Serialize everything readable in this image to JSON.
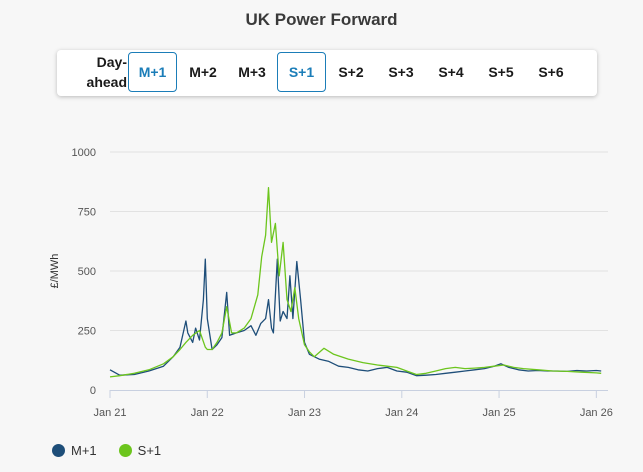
{
  "title": "UK Power Forward",
  "tabs": [
    {
      "label": "Day-ahead",
      "active": false
    },
    {
      "label": "M+1",
      "active": true
    },
    {
      "label": "M+2",
      "active": false
    },
    {
      "label": "M+3",
      "active": false
    },
    {
      "label": "S+1",
      "active": true
    },
    {
      "label": "S+2",
      "active": false
    },
    {
      "label": "S+3",
      "active": false
    },
    {
      "label": "S+4",
      "active": false
    },
    {
      "label": "S+5",
      "active": false
    },
    {
      "label": "S+6",
      "active": false
    }
  ],
  "chart_data": {
    "type": "line",
    "title": "",
    "xlabel": "",
    "ylabel": "£/MWh",
    "ylim": [
      0,
      1000
    ],
    "yticks": [
      "0",
      "250",
      "500",
      "750",
      "1000"
    ],
    "xlim": [
      2021.0,
      2026.12
    ],
    "xticks": [
      {
        "value": 2021,
        "label": "Jan 21"
      },
      {
        "value": 2022,
        "label": "Jan 22"
      },
      {
        "value": 2023,
        "label": "Jan 23"
      },
      {
        "value": 2024,
        "label": "Jan 24"
      },
      {
        "value": 2025,
        "label": "Jan 25"
      },
      {
        "value": 2026,
        "label": "Jan 26"
      }
    ],
    "grid": true,
    "legend": "bottom-left",
    "series": [
      {
        "name": "M+1",
        "color": "#1e4e79",
        "points": [
          [
            2021.0,
            85
          ],
          [
            2021.1,
            62
          ],
          [
            2021.25,
            65
          ],
          [
            2021.4,
            80
          ],
          [
            2021.55,
            100
          ],
          [
            2021.65,
            140
          ],
          [
            2021.72,
            180
          ],
          [
            2021.78,
            290
          ],
          [
            2021.8,
            240
          ],
          [
            2021.85,
            200
          ],
          [
            2021.88,
            260
          ],
          [
            2021.92,
            210
          ],
          [
            2021.96,
            380
          ],
          [
            2021.98,
            550
          ],
          [
            2022.0,
            300
          ],
          [
            2022.05,
            170
          ],
          [
            2022.1,
            190
          ],
          [
            2022.15,
            220
          ],
          [
            2022.2,
            410
          ],
          [
            2022.23,
            230
          ],
          [
            2022.3,
            240
          ],
          [
            2022.38,
            250
          ],
          [
            2022.45,
            270
          ],
          [
            2022.5,
            230
          ],
          [
            2022.55,
            280
          ],
          [
            2022.6,
            300
          ],
          [
            2022.63,
            380
          ],
          [
            2022.66,
            260
          ],
          [
            2022.68,
            240
          ],
          [
            2022.72,
            550
          ],
          [
            2022.75,
            290
          ],
          [
            2022.78,
            330
          ],
          [
            2022.82,
            300
          ],
          [
            2022.85,
            480
          ],
          [
            2022.88,
            300
          ],
          [
            2022.92,
            540
          ],
          [
            2022.96,
            380
          ],
          [
            2023.0,
            200
          ],
          [
            2023.05,
            150
          ],
          [
            2023.15,
            130
          ],
          [
            2023.25,
            120
          ],
          [
            2023.35,
            100
          ],
          [
            2023.45,
            95
          ],
          [
            2023.55,
            85
          ],
          [
            2023.65,
            80
          ],
          [
            2023.75,
            90
          ],
          [
            2023.85,
            95
          ],
          [
            2023.95,
            80
          ],
          [
            2024.05,
            75
          ],
          [
            2024.15,
            60
          ],
          [
            2024.25,
            62
          ],
          [
            2024.35,
            65
          ],
          [
            2024.45,
            70
          ],
          [
            2024.55,
            75
          ],
          [
            2024.65,
            80
          ],
          [
            2024.75,
            85
          ],
          [
            2024.85,
            90
          ],
          [
            2024.95,
            100
          ],
          [
            2025.02,
            110
          ],
          [
            2025.1,
            95
          ],
          [
            2025.2,
            85
          ],
          [
            2025.3,
            80
          ],
          [
            2025.4,
            82
          ],
          [
            2025.5,
            80
          ],
          [
            2025.6,
            80
          ],
          [
            2025.7,
            78
          ],
          [
            2025.8,
            82
          ],
          [
            2025.9,
            80
          ],
          [
            2026.0,
            82
          ],
          [
            2026.05,
            80
          ]
        ]
      },
      {
        "name": "S+1",
        "color": "#6cc51d",
        "points": [
          [
            2021.0,
            55
          ],
          [
            2021.1,
            60
          ],
          [
            2021.25,
            70
          ],
          [
            2021.4,
            85
          ],
          [
            2021.55,
            110
          ],
          [
            2021.65,
            140
          ],
          [
            2021.72,
            170
          ],
          [
            2021.78,
            200
          ],
          [
            2021.85,
            230
          ],
          [
            2021.92,
            250
          ],
          [
            2021.98,
            180
          ],
          [
            2022.0,
            170
          ],
          [
            2022.05,
            170
          ],
          [
            2022.1,
            200
          ],
          [
            2022.15,
            240
          ],
          [
            2022.2,
            350
          ],
          [
            2022.25,
            240
          ],
          [
            2022.3,
            240
          ],
          [
            2022.38,
            260
          ],
          [
            2022.45,
            300
          ],
          [
            2022.52,
            400
          ],
          [
            2022.56,
            560
          ],
          [
            2022.6,
            650
          ],
          [
            2022.63,
            850
          ],
          [
            2022.66,
            620
          ],
          [
            2022.7,
            700
          ],
          [
            2022.74,
            480
          ],
          [
            2022.78,
            620
          ],
          [
            2022.82,
            380
          ],
          [
            2022.86,
            330
          ],
          [
            2022.9,
            430
          ],
          [
            2022.94,
            300
          ],
          [
            2023.0,
            190
          ],
          [
            2023.05,
            160
          ],
          [
            2023.1,
            140
          ],
          [
            2023.2,
            175
          ],
          [
            2023.3,
            150
          ],
          [
            2023.45,
            130
          ],
          [
            2023.6,
            115
          ],
          [
            2023.75,
            105
          ],
          [
            2023.85,
            100
          ],
          [
            2023.95,
            95
          ],
          [
            2024.05,
            80
          ],
          [
            2024.15,
            65
          ],
          [
            2024.25,
            70
          ],
          [
            2024.35,
            80
          ],
          [
            2024.45,
            90
          ],
          [
            2024.55,
            95
          ],
          [
            2024.65,
            90
          ],
          [
            2024.75,
            92
          ],
          [
            2024.85,
            95
          ],
          [
            2024.95,
            100
          ],
          [
            2025.05,
            105
          ],
          [
            2025.15,
            95
          ],
          [
            2025.25,
            90
          ],
          [
            2025.4,
            85
          ],
          [
            2025.55,
            80
          ],
          [
            2025.7,
            78
          ],
          [
            2025.85,
            75
          ],
          [
            2026.0,
            72
          ],
          [
            2026.05,
            70
          ]
        ]
      }
    ]
  }
}
